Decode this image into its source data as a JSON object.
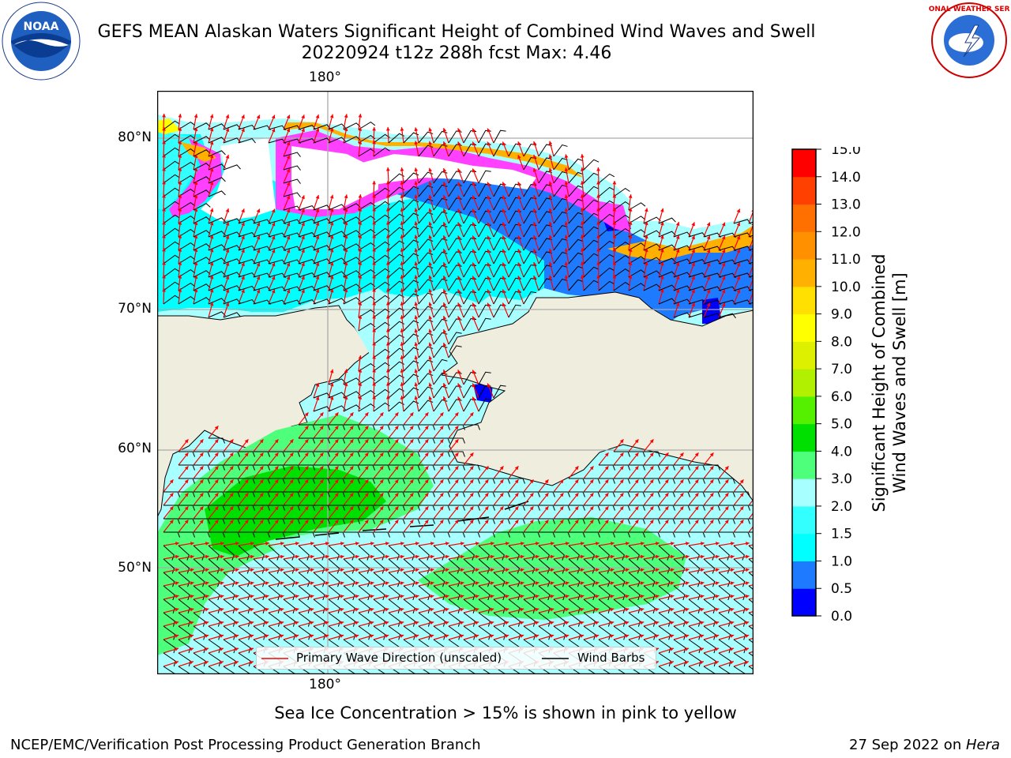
{
  "header": {
    "title_line1": "GEFS MEAN Alaskan Waters Significant Height of Combined Wind Waves and Swell",
    "title_line2": "20220924 t12z 288h fcst   Max: 4.46"
  },
  "logos": {
    "left": {
      "icon": "noaa-logo",
      "text": "NOAA"
    },
    "right": {
      "icon": "nws-logo",
      "text": "NATIONAL WEATHER SERVICE"
    }
  },
  "map": {
    "lat_labels": [
      "80°N",
      "70°N",
      "60°N",
      "50°N"
    ],
    "lon_top_label": "180°",
    "lon_bottom_label": "180°",
    "colors": {
      "land": "#efedde",
      "ocean_lt1": "#00ffff",
      "ocean_1_1_5": "#00ffff",
      "ocean_1_5_2": "#33ffff",
      "ocean_2_3": "#a8ffff",
      "ocean_3_4": "#4dff7a",
      "ocean_4_5": "#00e000",
      "ocean_05_1": "#1e7bff",
      "ice_pink": "#ff40ff",
      "ice_orange": "#ffb000",
      "ice_yellow": "#ffff00",
      "wave_arrow": "#ff0000",
      "wind_barb": "#000000"
    }
  },
  "legend": {
    "wave_direction_label": "Primary Wave Direction (unscaled)",
    "wind_barbs_label": "Wind Barbs"
  },
  "colorbar": {
    "title_line1": "Significant Height of Combined",
    "title_line2": "Wind Waves and Swell [m]",
    "ticks": [
      "0.0",
      "0.5",
      "1.0",
      "1.5",
      "2.0",
      "3.0",
      "4.0",
      "5.0",
      "6.0",
      "7.0",
      "8.0",
      "9.0",
      "10.0",
      "11.0",
      "12.0",
      "13.0",
      "14.0",
      "15.0"
    ],
    "colors": [
      "#0000ff",
      "#1e7bff",
      "#00ffff",
      "#33ffff",
      "#a8ffff",
      "#4dff7a",
      "#00e000",
      "#55f000",
      "#b0f000",
      "#ddf000",
      "#ffff00",
      "#ffe000",
      "#ffb000",
      "#ff9000",
      "#ff7000",
      "#ff4000",
      "#ff0000"
    ]
  },
  "footer": {
    "note": "Sea Ice Concentration > 15% is shown in pink to yellow",
    "credit_left": "NCEP/EMC/Verification Post Processing Product Generation Branch",
    "credit_date": "27 Sep 2022 on ",
    "credit_machine": "Hera"
  }
}
